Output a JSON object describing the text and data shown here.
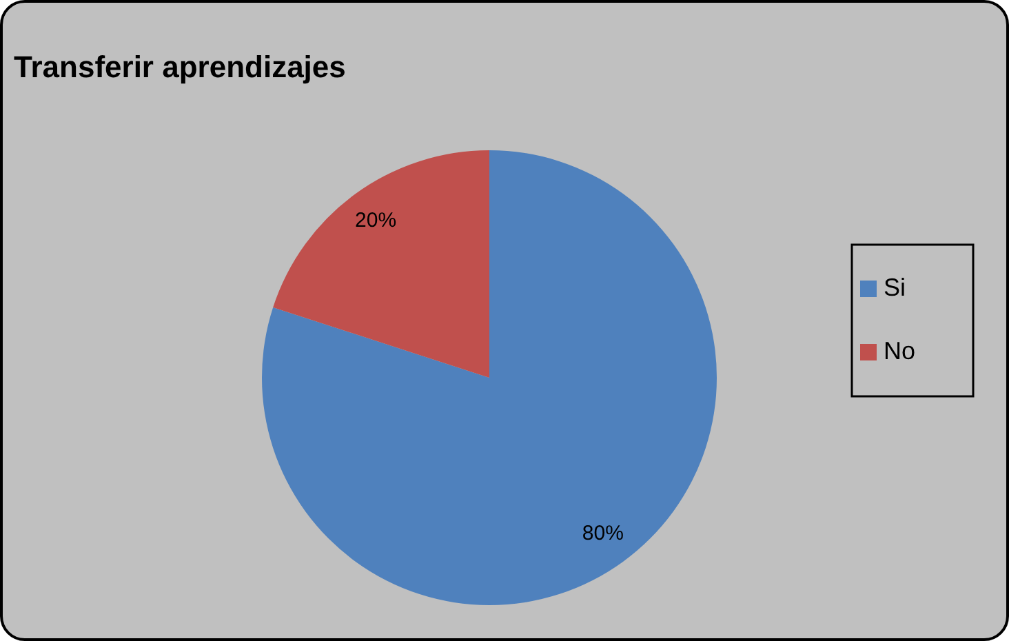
{
  "chart_data": {
    "type": "pie",
    "title": "Transferir aprendizajes",
    "categories": [
      "Si",
      "No"
    ],
    "values": [
      80,
      20
    ],
    "colors": [
      "#4f81bd",
      "#c0504d"
    ],
    "value_labels": [
      "80%",
      "20%"
    ],
    "legend": "right"
  }
}
